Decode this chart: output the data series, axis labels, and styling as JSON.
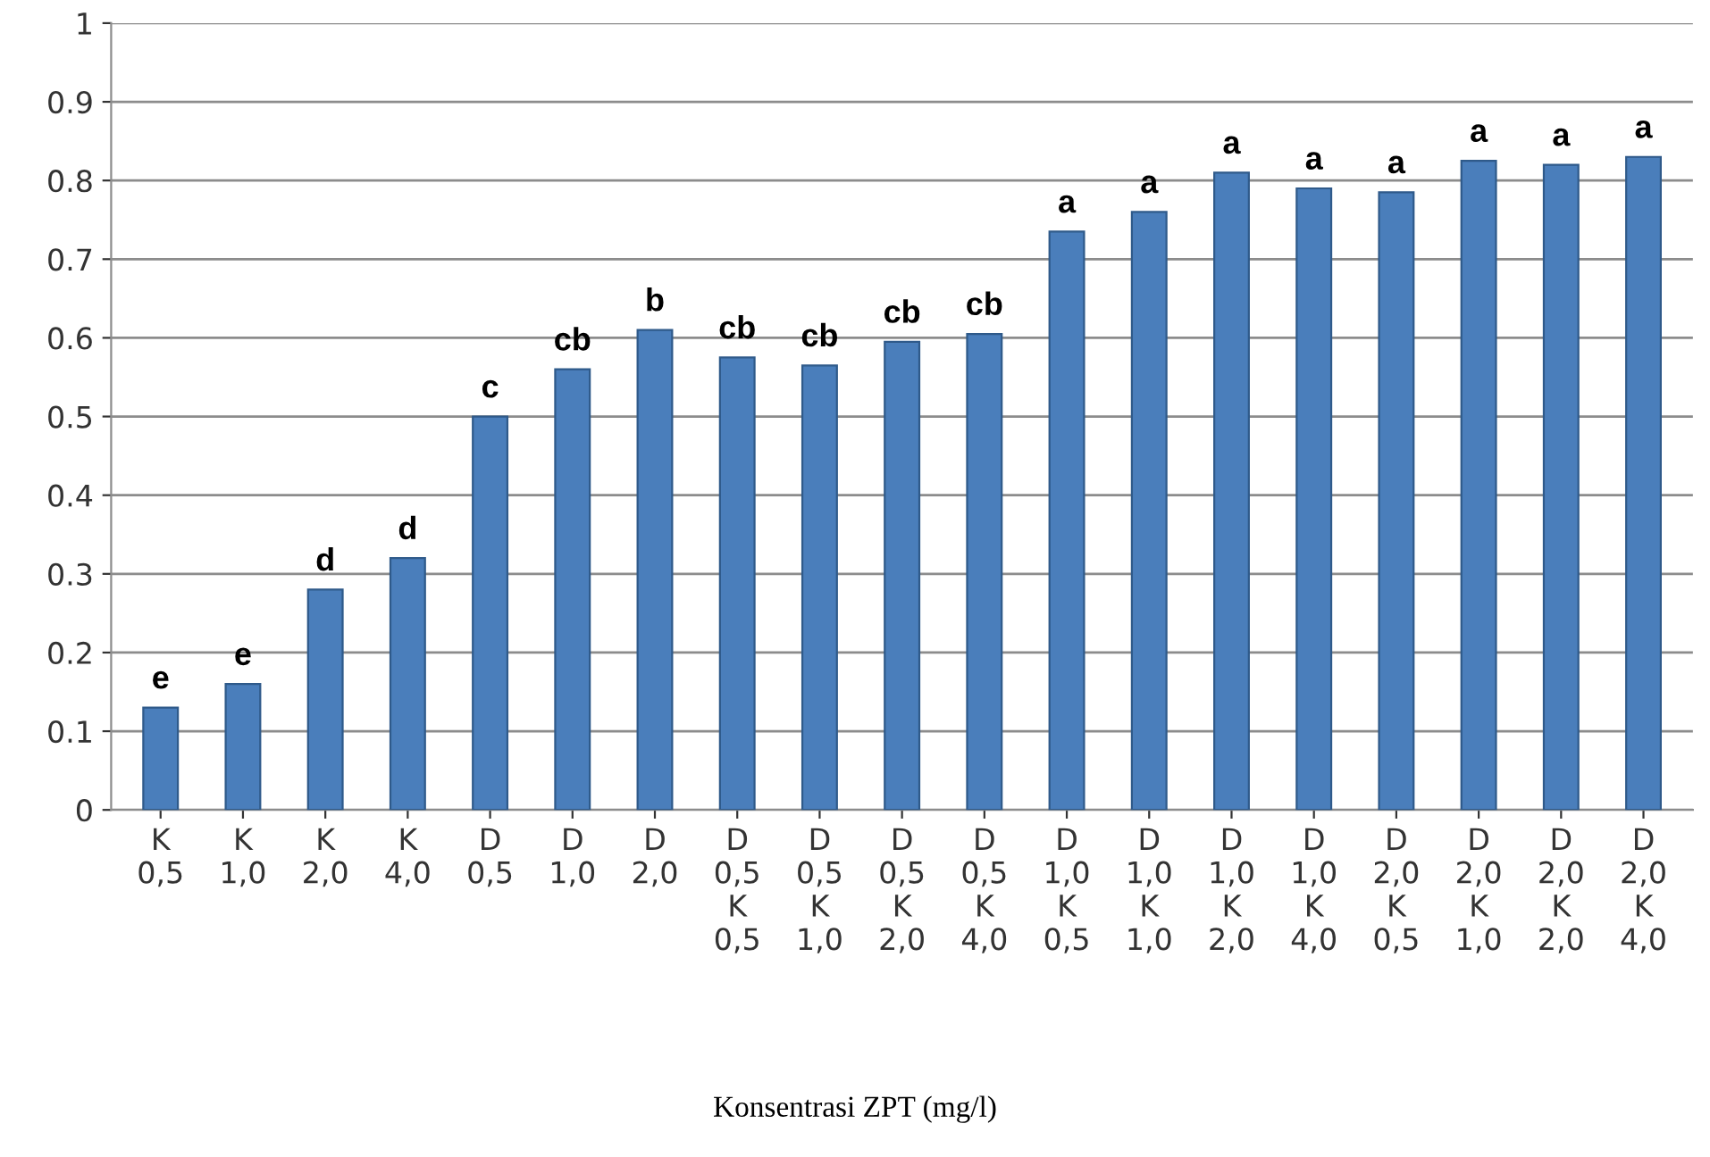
{
  "chart_data": {
    "type": "bar",
    "categories": [
      "K\n0,5",
      "K\n1,0",
      "K\n2,0",
      "K\n4,0",
      "D\n0,5",
      "D\n1,0",
      "D\n2,0",
      "D\n0,5\nK\n0,5",
      "D\n0,5\nK\n1,0",
      "D\n0,5\nK\n2,0",
      "D\n0,5\nK\n4,0",
      "D\n1,0\nK\n0,5",
      "D\n1,0\nK\n1,0",
      "D\n1,0\nK\n2,0",
      "D\n1,0\nK\n4,0",
      "D\n2,0\nK\n0,5",
      "D\n2,0\nK\n1,0",
      "D\n2,0\nK\n2,0",
      "D\n2,0\nK\n4,0"
    ],
    "values": [
      0.13,
      0.16,
      0.28,
      0.32,
      0.5,
      0.56,
      0.61,
      0.575,
      0.565,
      0.595,
      0.605,
      0.735,
      0.76,
      0.81,
      0.79,
      0.785,
      0.825,
      0.82,
      0.83
    ],
    "color": "#4a7ebb",
    "value_labels": [
      "e",
      "e",
      "d",
      "d",
      "c",
      "cb",
      "b",
      "cb",
      "cb",
      "cb",
      "cb",
      "a",
      "a",
      "a",
      "a",
      "a",
      "a",
      "a",
      "a"
    ],
    "xlabel": "Konsentrasi ZPT (mg/l)",
    "ylim": [
      0,
      1
    ],
    "yticks": [
      0,
      0.1,
      0.2,
      0.3,
      0.4,
      0.5,
      0.6,
      0.7,
      0.8,
      0.9,
      1
    ],
    "grid": "y",
    "legend": false
  }
}
